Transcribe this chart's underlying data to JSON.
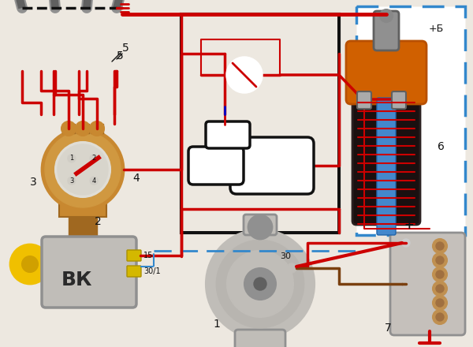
{
  "bg_color": "#ede8e0",
  "figsize": [
    6.0,
    4.4
  ],
  "dpi": 100,
  "red": "#cc0000",
  "black": "#111111",
  "brown": "#7a4010",
  "blue_dash": "#3388cc",
  "orange": "#d06000",
  "dark_orange": "#b85000",
  "gold": "#c8a000",
  "grey_light": "#c0bdb8",
  "grey_med": "#909090",
  "grey_dark": "#606060",
  "tan": "#c88830",
  "tan_dark": "#a06820",
  "white": "#ffffff",
  "near_black": "#1a1a1a",
  "blue_coil": "#4488cc",
  "yellow_key": "#f0c000",
  "distributor_face": "#e0ddd5"
}
